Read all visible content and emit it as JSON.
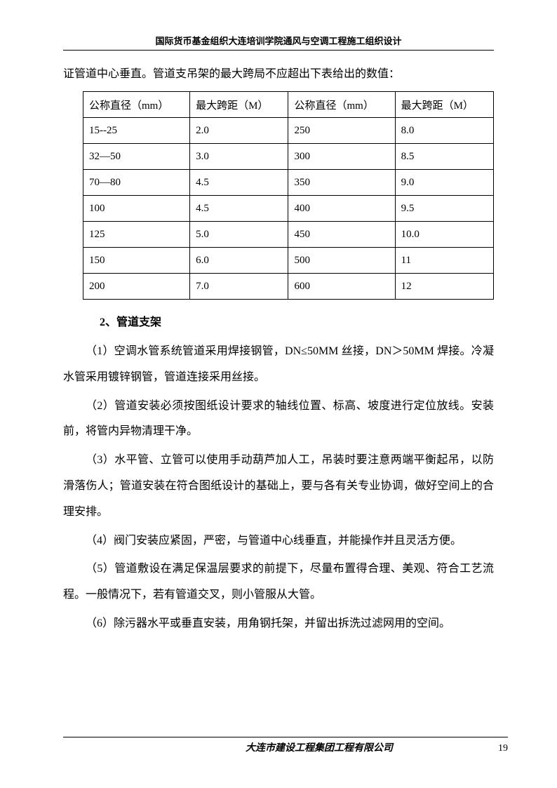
{
  "header": {
    "title": "国际货币基金组织大连培训学院通风与空调工程施工组织设计"
  },
  "intro": "证管道中心垂直。管道支吊架的最大跨局不应超出下表给出的数值：",
  "table": {
    "columns": [
      "公称直径（mm）",
      "最大跨距（M）",
      "公称直径（mm）",
      "最大跨距（M）"
    ],
    "rows": [
      [
        "15--25",
        "2.0",
        "250",
        "8.0"
      ],
      [
        "32—50",
        "3.0",
        "300",
        "8.5"
      ],
      [
        "70—80",
        "4.5",
        "350",
        "9.0"
      ],
      [
        "100",
        "4.5",
        "400",
        "9.5"
      ],
      [
        "125",
        "5.0",
        "450",
        "10.0"
      ],
      [
        "150",
        "6.0",
        "500",
        "11"
      ],
      [
        "200",
        "7.0",
        "600",
        "12"
      ]
    ]
  },
  "section": {
    "heading": "2、管道支架",
    "paragraphs": [
      "（1）空调水管系统管道采用焊接钢管，DN≤50MM 丝接，DN＞50MM 焊接。冷凝水管采用镀锌钢管，管道连接采用丝接。",
      "（2）管道安装必须按图纸设计要求的轴线位置、标高、坡度进行定位放线。安装前，将管内异物清理干净。",
      "（3）水平管、立管可以使用手动葫芦加人工，吊装时要注意两端平衡起吊，以防滑落伤人；管道安装在符合图纸设计的基础上，要与各有关专业协调，做好空间上的合理安排。",
      "（4）阀门安装应紧固，严密，与管道中心线垂直，并能操作并且灵活方便。",
      "（5）管道敷设在满足保温层要求的前提下，尽量布置得合理、美观、符合工艺流程。一般情况下，若有管道交叉，则小管服从大管。",
      "（6）除污器水平或垂直安装，用角钢托架，并留出拆洗过滤网用的空间。"
    ]
  },
  "footer": {
    "company": "大连市建设工程集团工程有限公司",
    "page_number": "19"
  }
}
